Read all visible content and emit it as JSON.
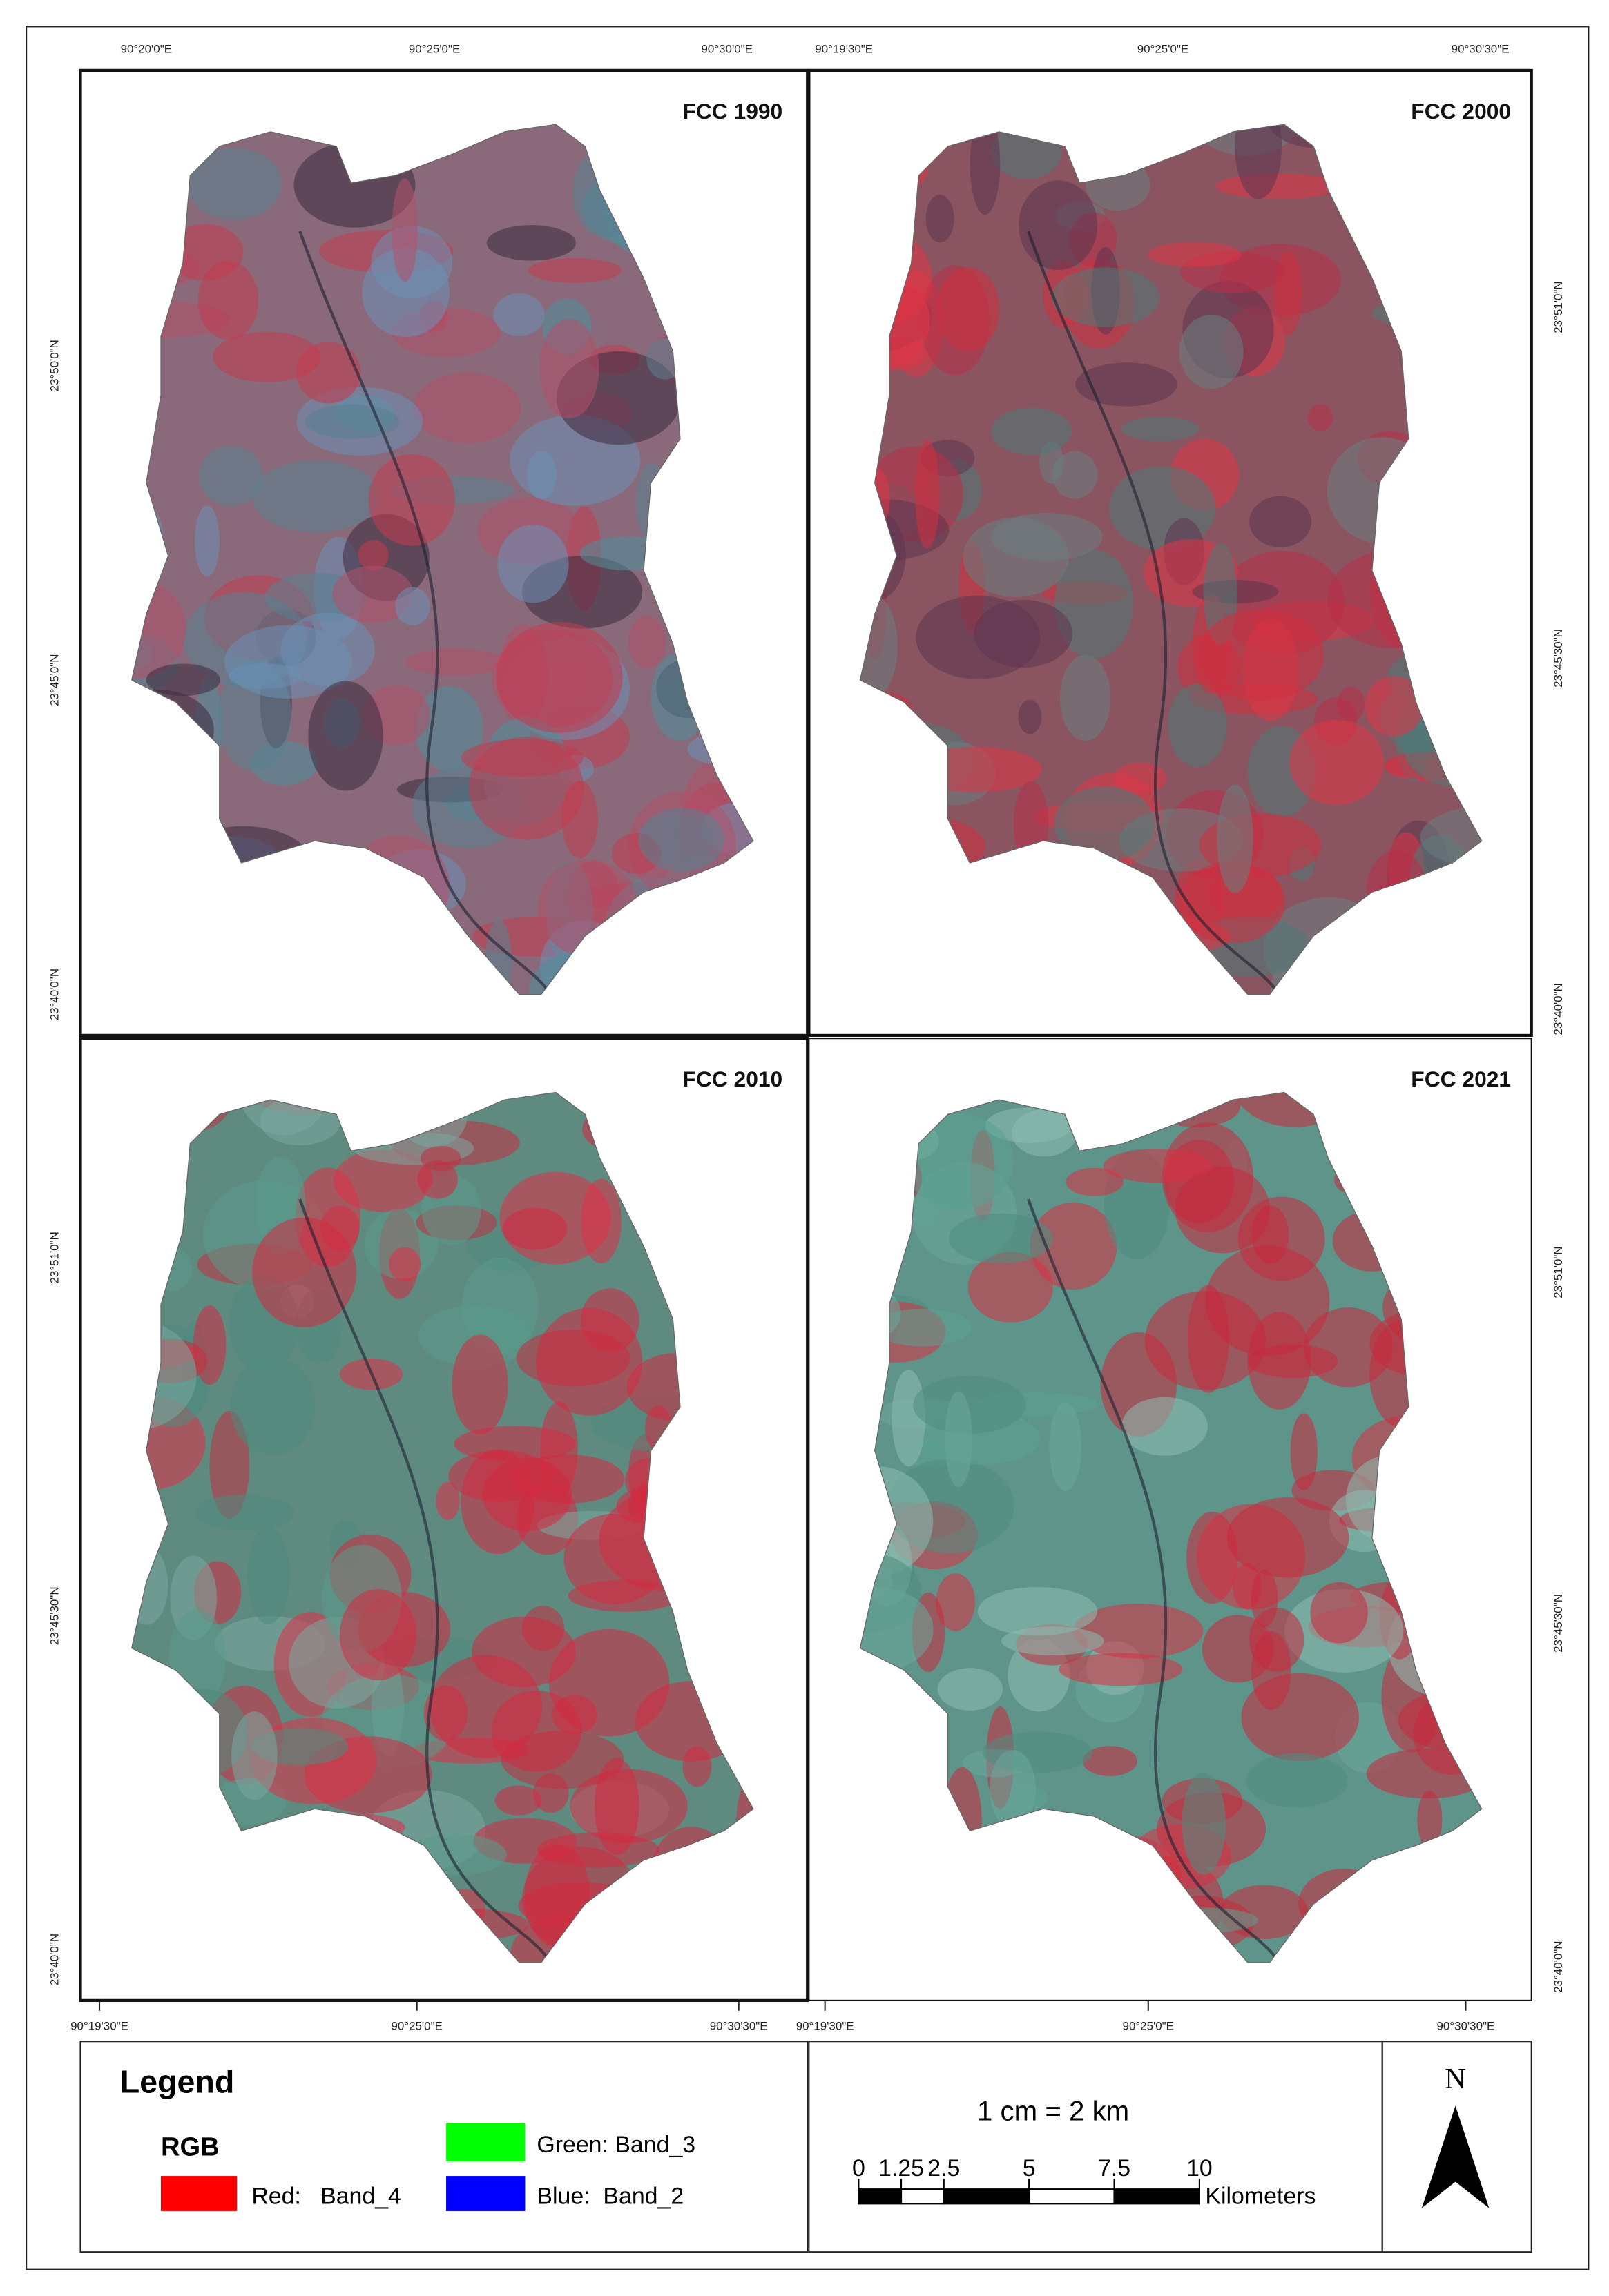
{
  "panels": [
    {
      "title": "FCC 1990"
    },
    {
      "title": "FCC 2000"
    },
    {
      "title": "FCC 2010"
    },
    {
      "title": "FCC 2021"
    }
  ],
  "top_labels": {
    "left": [
      "90°20'0\"E",
      "90°25'0\"E",
      "90°30'0\"E"
    ],
    "right": [
      "90°19'30\"E",
      "90°25'0\"E",
      "90°30'30\"E"
    ]
  },
  "bottom_labels": {
    "left": [
      "90°19'30\"E",
      "90°25'0\"E",
      "90°30'30\"E"
    ],
    "right": [
      "90°19'30\"E",
      "90°25'0\"E",
      "90°30'30\"E"
    ]
  },
  "side_labels": {
    "top_left": [
      "23°50'0\"N",
      "23°45'0\"N",
      "23°40'0\"N"
    ],
    "top_right": [
      "23°51'0\"N",
      "23°45'30\"N",
      "23°40'0\"N"
    ],
    "bottom_left": [
      "23°51'0\"N",
      "23°45'30\"N",
      "23°40'0\"N"
    ],
    "bottom_right": [
      "23°51'0\"N",
      "23°45'30\"N",
      "23°40'0\"N"
    ]
  },
  "legend": {
    "title": "Legend",
    "group": "RGB",
    "red": "Red:   Band_4",
    "green": "Green: Band_3",
    "blue": "Blue:  Band_2"
  },
  "scale": {
    "text": "1 cm = 2 km",
    "ticks": [
      0,
      1.25,
      2.5,
      5,
      7.5,
      10
    ],
    "unit": "Kilometers"
  },
  "north": "N"
}
